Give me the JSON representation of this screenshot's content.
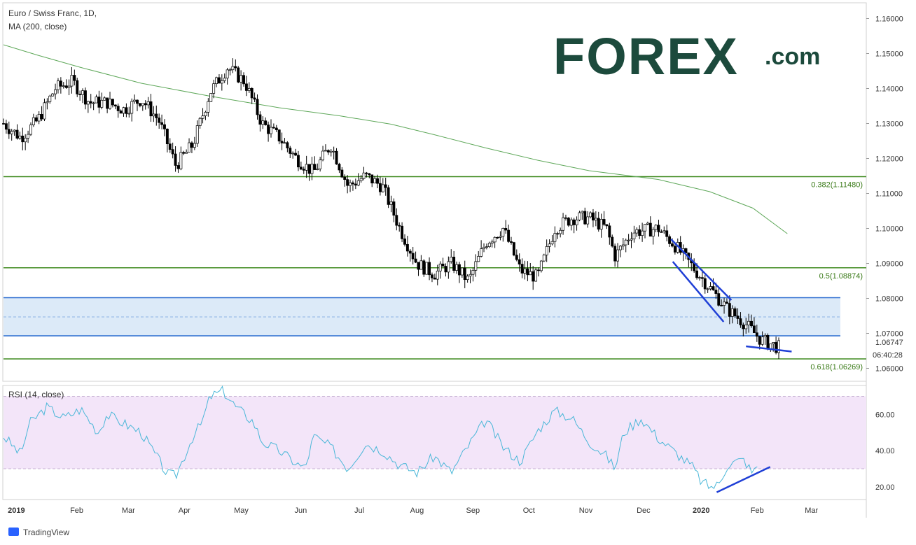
{
  "chart_data": [
    {
      "type": "candlestick",
      "title": "Euro / Swiss Franc, 1D,",
      "indicator_label": "MA (200, close)",
      "y_ticks": [
        "1.16000",
        "1.15000",
        "1.14000",
        "1.13000",
        "1.12000",
        "1.11000",
        "1.10000",
        "1.09000",
        "1.08000",
        "1.07000",
        "1.06000"
      ],
      "y_tick_values": [
        1.16,
        1.15,
        1.14,
        1.13,
        1.12,
        1.11,
        1.1,
        1.09,
        1.08,
        1.07,
        1.06
      ],
      "ylim": [
        1.0563,
        1.1645
      ],
      "last_price": "1.06747",
      "last_price_value": 1.06747,
      "countdown": "06:40:28",
      "fib_levels": [
        {
          "label": "0.382(1.11480)",
          "value": 1.1148,
          "color": "#3f8a1e"
        },
        {
          "label": "0.5(1.08874)",
          "value": 1.08874,
          "color": "#3f8a1e"
        },
        {
          "label": "0.618(1.06269)",
          "value": 1.06269,
          "color": "#3f8a1e"
        }
      ],
      "support_zone": {
        "top": 1.0802,
        "bottom": 1.0693,
        "mid": 1.0747
      },
      "ma200": [
        [
          0,
          1.1525
        ],
        [
          0.04,
          1.1495
        ],
        [
          0.09,
          1.146
        ],
        [
          0.16,
          1.1415
        ],
        [
          0.24,
          1.1378
        ],
        [
          0.32,
          1.1345
        ],
        [
          0.39,
          1.1322
        ],
        [
          0.45,
          1.1298
        ],
        [
          0.5,
          1.1268
        ],
        [
          0.56,
          1.123
        ],
        [
          0.62,
          1.1195
        ],
        [
          0.68,
          1.1165
        ],
        [
          0.76,
          1.114
        ],
        [
          0.82,
          1.1105
        ],
        [
          0.87,
          1.1058
        ],
        [
          0.91,
          1.0985
        ]
      ],
      "price_path": [
        [
          0,
          1.13
        ],
        [
          0.02,
          1.126
        ],
        [
          0.04,
          1.131
        ],
        [
          0.06,
          1.14
        ],
        [
          0.08,
          1.142
        ],
        [
          0.1,
          1.136
        ],
        [
          0.12,
          1.136
        ],
        [
          0.14,
          1.134
        ],
        [
          0.16,
          1.137
        ],
        [
          0.18,
          1.131
        ],
        [
          0.2,
          1.118
        ],
        [
          0.22,
          1.124
        ],
        [
          0.24,
          1.139
        ],
        [
          0.26,
          1.146
        ],
        [
          0.28,
          1.142
        ],
        [
          0.3,
          1.13
        ],
        [
          0.32,
          1.126
        ],
        [
          0.34,
          1.12
        ],
        [
          0.36,
          1.116
        ],
        [
          0.38,
          1.124
        ],
        [
          0.4,
          1.112
        ],
        [
          0.42,
          1.115
        ],
        [
          0.44,
          1.112
        ],
        [
          0.46,
          1.1
        ],
        [
          0.48,
          1.09
        ],
        [
          0.5,
          1.087
        ],
        [
          0.52,
          1.09
        ],
        [
          0.54,
          1.085
        ],
        [
          0.56,
          1.096
        ],
        [
          0.58,
          1.1
        ],
        [
          0.6,
          1.088
        ],
        [
          0.62,
          1.086
        ],
        [
          0.64,
          1.1
        ],
        [
          0.66,
          1.103
        ],
        [
          0.68,
          1.103
        ],
        [
          0.7,
          1.1
        ],
        [
          0.71,
          1.092
        ],
        [
          0.73,
          1.099
        ],
        [
          0.76,
          1.1
        ],
        [
          0.78,
          1.095
        ],
        [
          0.8,
          1.089
        ],
        [
          0.82,
          1.083
        ],
        [
          0.84,
          1.077
        ],
        [
          0.86,
          1.073
        ],
        [
          0.88,
          1.068
        ],
        [
          0.9,
          1.066
        ]
      ]
    },
    {
      "type": "line",
      "title": "RSI (14, close)",
      "y_ticks": [
        "60.00",
        "40.00",
        "20.00"
      ],
      "y_tick_values": [
        60,
        40,
        20
      ],
      "ylim": [
        13,
        76
      ],
      "band": [
        30,
        70
      ],
      "rsi_path": [
        [
          0,
          48
        ],
        [
          0.02,
          38
        ],
        [
          0.03,
          55
        ],
        [
          0.05,
          64
        ],
        [
          0.07,
          58
        ],
        [
          0.09,
          63
        ],
        [
          0.11,
          50
        ],
        [
          0.12,
          60
        ],
        [
          0.14,
          55
        ],
        [
          0.16,
          50
        ],
        [
          0.18,
          35
        ],
        [
          0.19,
          27
        ],
        [
          0.2,
          26
        ],
        [
          0.22,
          48
        ],
        [
          0.23,
          55
        ],
        [
          0.24,
          70
        ],
        [
          0.255,
          73
        ],
        [
          0.27,
          64
        ],
        [
          0.29,
          56
        ],
        [
          0.3,
          45
        ],
        [
          0.32,
          40
        ],
        [
          0.34,
          33
        ],
        [
          0.35,
          30
        ],
        [
          0.36,
          48
        ],
        [
          0.38,
          42
        ],
        [
          0.4,
          30
        ],
        [
          0.42,
          44
        ],
        [
          0.44,
          40
        ],
        [
          0.46,
          32
        ],
        [
          0.48,
          28
        ],
        [
          0.5,
          37
        ],
        [
          0.52,
          28
        ],
        [
          0.54,
          43
        ],
        [
          0.56,
          57
        ],
        [
          0.58,
          42
        ],
        [
          0.6,
          34
        ],
        [
          0.62,
          51
        ],
        [
          0.64,
          62
        ],
        [
          0.66,
          58
        ],
        [
          0.68,
          45
        ],
        [
          0.7,
          37
        ],
        [
          0.71,
          30
        ],
        [
          0.72,
          50
        ],
        [
          0.74,
          58
        ],
        [
          0.76,
          47
        ],
        [
          0.78,
          39
        ],
        [
          0.8,
          31
        ],
        [
          0.81,
          23
        ],
        [
          0.82,
          20
        ],
        [
          0.83,
          21
        ],
        [
          0.84,
          32
        ],
        [
          0.85,
          34
        ],
        [
          0.86,
          35
        ],
        [
          0.87,
          27
        ],
        [
          0.875,
          32
        ]
      ],
      "divergence_lines": [
        [
          [
            0.828,
            17
          ],
          [
            0.89,
            31
          ]
        ]
      ]
    }
  ],
  "x_axis": {
    "labels": [
      "2019",
      "Feb",
      "Mar",
      "Apr",
      "May",
      "Jun",
      "Jul",
      "Aug",
      "Sep",
      "Oct",
      "Nov",
      "Dec",
      "2020",
      "Feb",
      "Mar"
    ],
    "bold": [
      "2019",
      "2020"
    ],
    "positions": [
      0.005,
      0.085,
      0.145,
      0.21,
      0.276,
      0.345,
      0.413,
      0.48,
      0.545,
      0.61,
      0.676,
      0.743,
      0.81,
      0.875,
      0.938
    ]
  },
  "channel_lines": [
    [
      [
        0.775,
        1.0969
      ],
      [
        0.845,
        1.0795
      ]
    ],
    [
      [
        0.777,
        1.0905
      ],
      [
        0.836,
        1.0733
      ]
    ],
    [
      [
        0.862,
        1.0663
      ],
      [
        0.915,
        1.0648
      ]
    ]
  ],
  "brand": {
    "logo_text": "FOREX",
    "logo_suffix": ".com",
    "color": "#1c4a3c",
    "accent": "#3fae49"
  },
  "footer": {
    "tradingview": "TradingView"
  },
  "colors": {
    "up": "#ffffff",
    "down": "#000000",
    "ma": "#5fa85a",
    "rsi": "#4ab7d8",
    "channel": "#1f3fd6",
    "zone": "#d6e6f7",
    "zone_border": "#2a6ccf",
    "rsi_band": "#f3e5f9"
  }
}
